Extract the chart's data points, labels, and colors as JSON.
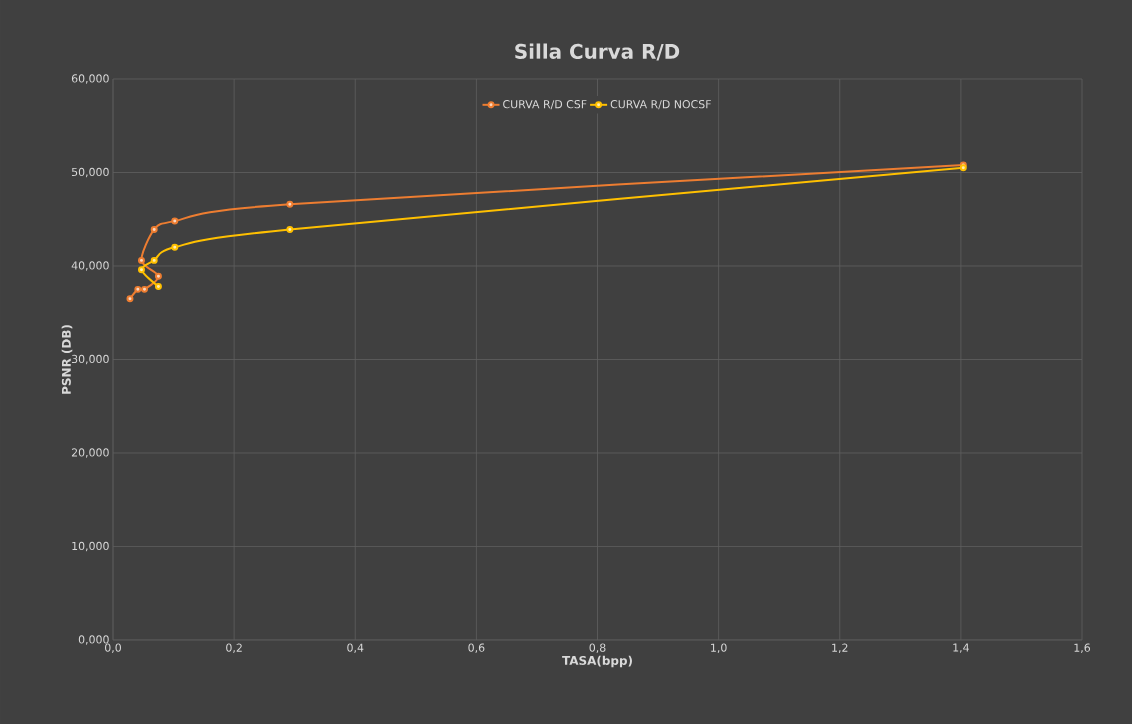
{
  "chart_data": {
    "type": "line",
    "title": "Silla Curva R/D",
    "xlabel": "TASA(bpp)",
    "ylabel": "PSNR (DB)",
    "xlim": [
      0,
      1.6
    ],
    "ylim": [
      0,
      60
    ],
    "xticks": [
      {
        "value": 0,
        "label": "0,0"
      },
      {
        "value": 0.2,
        "label": "0,2"
      },
      {
        "value": 0.4,
        "label": "0,4"
      },
      {
        "value": 0.6,
        "label": "0,6"
      },
      {
        "value": 0.8,
        "label": "0,8"
      },
      {
        "value": 1.0,
        "label": "1,0"
      },
      {
        "value": 1.2,
        "label": "1,2"
      },
      {
        "value": 1.4,
        "label": "1,4"
      },
      {
        "value": 1.6,
        "label": "1,6"
      }
    ],
    "yticks": [
      {
        "value": 0,
        "label": "0,000"
      },
      {
        "value": 10,
        "label": "10,000"
      },
      {
        "value": 20,
        "label": "20,000"
      },
      {
        "value": 30,
        "label": "30,000"
      },
      {
        "value": 40,
        "label": "40,000"
      },
      {
        "value": 50,
        "label": "50,000"
      },
      {
        "value": 60,
        "label": "60,000"
      }
    ],
    "grid": true,
    "legend": "top",
    "marker": "circle",
    "line_style": "solid",
    "series": [
      {
        "name": "CURVA R/D CSF",
        "color": "#ed7d31",
        "x": [
          0.028,
          0.041,
          0.052,
          0.075,
          0.047,
          0.068,
          0.102,
          0.292,
          1.404
        ],
        "values": [
          36.5,
          37.5,
          37.5,
          38.9,
          40.6,
          43.9,
          44.8,
          46.6,
          50.8
        ]
      },
      {
        "name": "CURVA R/D NOCSF",
        "color": "#ffc000",
        "x": [
          0.075,
          0.047,
          0.068,
          0.102,
          0.292,
          1.404
        ],
        "values": [
          37.8,
          39.6,
          40.6,
          42.0,
          43.9,
          50.5
        ]
      }
    ]
  }
}
